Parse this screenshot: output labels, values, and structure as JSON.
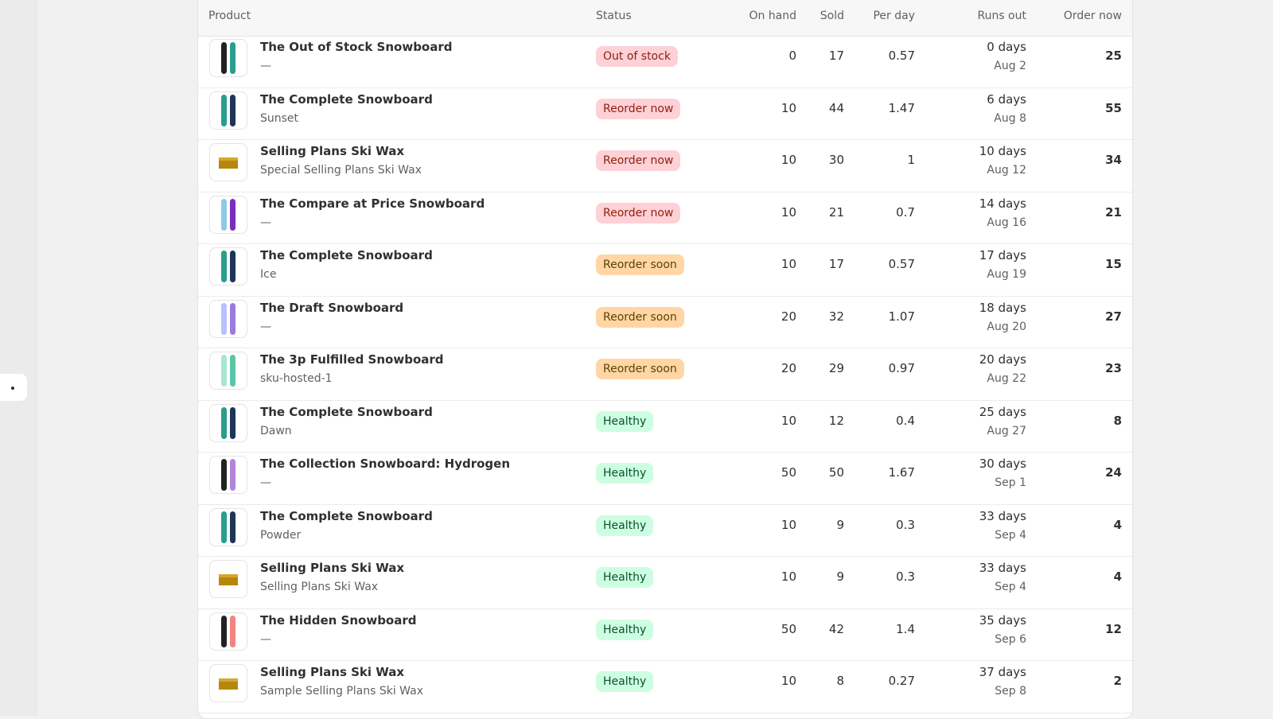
{
  "table": {
    "headers": [
      "Product",
      "Status",
      "On hand",
      "Sold",
      "Per day",
      "Runs out",
      "Order now"
    ],
    "rows": [
      {
        "name": "The Out of Stock Snowboard",
        "variant": "—",
        "status": {
          "label": "Out of stock",
          "bg": "#fed1d7",
          "color": "#8e1f0b"
        },
        "on_hand": 0,
        "sold": 17,
        "per_day": 0.57,
        "runs_out": "0 days",
        "runs_out_date": "Aug 2",
        "order_now": 25
      },
      {
        "name": "The Complete Snowboard",
        "variant": "Sunset",
        "status": {
          "label": "Reorder now",
          "bg": "#fed1d7",
          "color": "#8e1f0b"
        },
        "on_hand": 10,
        "sold": 44,
        "per_day": 1.47,
        "runs_out": "6 days",
        "runs_out_date": "Aug 8",
        "order_now": 55
      },
      {
        "name": "Selling Plans Ski Wax",
        "variant": "Special Selling Plans Ski Wax",
        "status": {
          "label": "Reorder now",
          "bg": "#fed1d7",
          "color": "#8e1f0b"
        },
        "on_hand": 10,
        "sold": 30,
        "per_day": 1,
        "runs_out": "10 days",
        "runs_out_date": "Aug 12",
        "order_now": 34
      },
      {
        "name": "The Compare at Price Snowboard",
        "variant": "—",
        "status": {
          "label": "Reorder now",
          "bg": "#fed1d7",
          "color": "#8e1f0b"
        },
        "on_hand": 10,
        "sold": 21,
        "per_day": 0.7,
        "runs_out": "14 days",
        "runs_out_date": "Aug 16",
        "order_now": 21
      },
      {
        "name": "The Complete Snowboard",
        "variant": "Ice",
        "status": {
          "label": "Reorder soon",
          "bg": "#ffd6a4",
          "color": "#5e4200"
        },
        "on_hand": 10,
        "sold": 17,
        "per_day": 0.57,
        "runs_out": "17 days",
        "runs_out_date": "Aug 19",
        "order_now": 15
      },
      {
        "name": "The Draft Snowboard",
        "variant": "—",
        "status": {
          "label": "Reorder soon",
          "bg": "#ffd6a4",
          "color": "#5e4200"
        },
        "on_hand": 20,
        "sold": 32,
        "per_day": 1.07,
        "runs_out": "18 days",
        "runs_out_date": "Aug 20",
        "order_now": 27
      },
      {
        "name": "The 3p Fulfilled Snowboard",
        "variant": "sku-hosted-1",
        "status": {
          "label": "Reorder soon",
          "bg": "#ffd6a4",
          "color": "#5e4200"
        },
        "on_hand": 20,
        "sold": 29,
        "per_day": 0.97,
        "runs_out": "20 days",
        "runs_out_date": "Aug 22",
        "order_now": 23
      },
      {
        "name": "The Complete Snowboard",
        "variant": "Dawn",
        "status": {
          "label": "Healthy",
          "bg": "#cdfee1",
          "color": "#0c5132"
        },
        "on_hand": 10,
        "sold": 12,
        "per_day": 0.4,
        "runs_out": "25 days",
        "runs_out_date": "Aug 27",
        "order_now": 8
      },
      {
        "name": "The Collection Snowboard: Hydrogen",
        "variant": "—",
        "status": {
          "label": "Healthy",
          "bg": "#cdfee1",
          "color": "#0c5132"
        },
        "on_hand": 50,
        "sold": 50,
        "per_day": 1.67,
        "runs_out": "30 days",
        "runs_out_date": "Sep 1",
        "order_now": 24
      },
      {
        "name": "The Complete Snowboard",
        "variant": "Powder",
        "status": {
          "label": "Healthy",
          "bg": "#cdfee1",
          "color": "#0c5132"
        },
        "on_hand": 10,
        "sold": 9,
        "per_day": 0.3,
        "runs_out": "33 days",
        "runs_out_date": "Sep 4",
        "order_now": 4
      },
      {
        "name": "Selling Plans Ski Wax",
        "variant": "Selling Plans Ski Wax",
        "status": {
          "label": "Healthy",
          "bg": "#cdfee1",
          "color": "#0c5132"
        },
        "on_hand": 10,
        "sold": 9,
        "per_day": 0.3,
        "runs_out": "33 days",
        "runs_out_date": "Sep 4",
        "order_now": 4
      },
      {
        "name": "The Hidden Snowboard",
        "variant": "—",
        "status": {
          "label": "Healthy",
          "bg": "#cdfee1",
          "color": "#0c5132"
        },
        "on_hand": 50,
        "sold": 42,
        "per_day": 1.4,
        "runs_out": "35 days",
        "runs_out_date": "Sep 6",
        "order_now": 12
      },
      {
        "name": "Selling Plans Ski Wax",
        "variant": "Sample Selling Plans Ski Wax",
        "status": {
          "label": "Healthy",
          "bg": "#cdfee1",
          "color": "#0c5132"
        },
        "on_hand": 10,
        "sold": 8,
        "per_day": 0.27,
        "runs_out": "37 days",
        "runs_out_date": "Sep 8",
        "order_now": 2
      }
    ]
  }
}
